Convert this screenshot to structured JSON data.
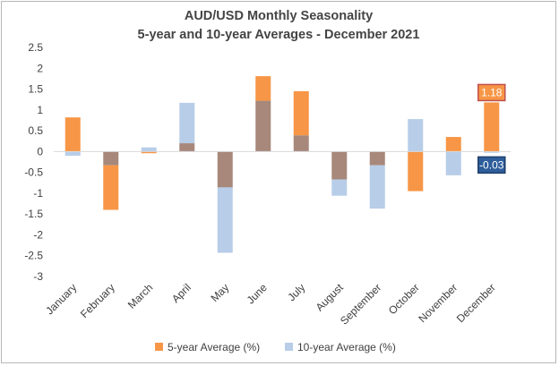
{
  "chart_data": {
    "type": "bar",
    "title_line1": "AUD/USD Monthly Seasonality",
    "title_line2": "5-year and 10-year Averages - December 2021",
    "categories": [
      "January",
      "February",
      "March",
      "April",
      "May",
      "June",
      "July",
      "August",
      "September",
      "October",
      "November",
      "December"
    ],
    "series": [
      {
        "name": "5-year Average (%)",
        "color": "#f79646",
        "values": [
          0.82,
          -1.4,
          -0.04,
          0.2,
          -0.86,
          1.81,
          1.45,
          -0.67,
          -0.33,
          -0.95,
          0.35,
          1.18
        ]
      },
      {
        "name": "10-year Average (%)",
        "color": "#b7cde8",
        "values": [
          -0.1,
          -0.33,
          0.1,
          1.17,
          -2.43,
          1.22,
          0.39,
          -1.06,
          -1.37,
          0.78,
          -0.57,
          -0.03
        ]
      }
    ],
    "overlap_color": "#a7887b",
    "yticks": [
      "2.5",
      "2",
      "1.5",
      "1",
      "0.5",
      "0",
      "-0.5",
      "-1",
      "-1.5",
      "-2",
      "-2.5",
      "-3"
    ],
    "ylim": [
      -3,
      2.5
    ],
    "grid": false,
    "legend_position": "bottom",
    "data_labels": [
      {
        "series": 0,
        "index": 11,
        "text": "1.18",
        "fill": "#f79646",
        "border": "#c0504d"
      },
      {
        "series": 1,
        "index": 11,
        "text": "-0.03",
        "fill": "#2e5e9b",
        "border": "#1f3f6a"
      }
    ]
  }
}
